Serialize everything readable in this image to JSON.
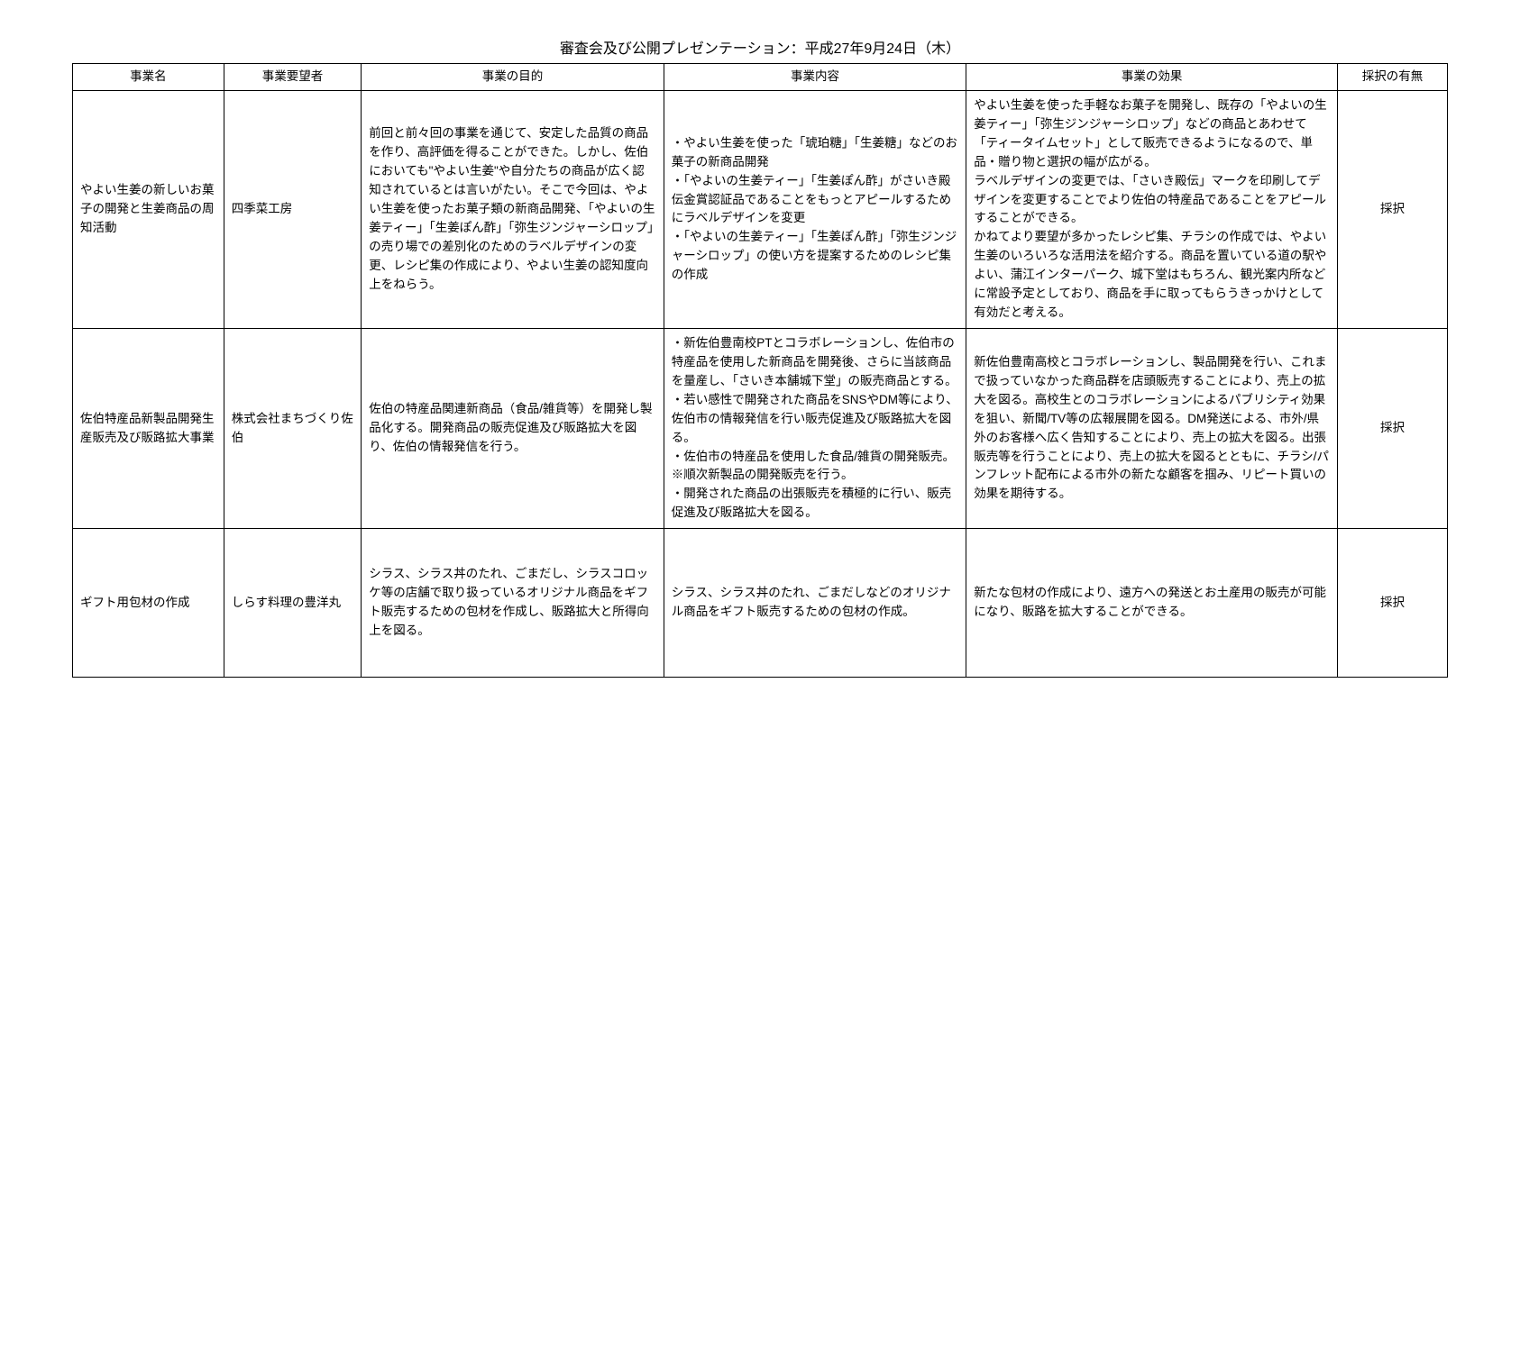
{
  "title": "審査会及び公開プレゼンテーション：平成27年9月24日（木）",
  "columns": [
    "事業名",
    "事業要望者",
    "事業の目的",
    "事業内容",
    "事業の効果",
    "採択の有無"
  ],
  "rows": [
    {
      "name": "やよい生姜の新しいお菓子の開発と生姜商品の周知活動",
      "applicant": "四季菜工房",
      "purpose": "前回と前々回の事業を通じて、安定した品質の商品を作り、高評価を得ることができた。しかし、佐伯においても\"やよい生姜\"や自分たちの商品が広く認知されているとは言いがたい。そこで今回は、やよい生姜を使ったお菓子類の新商品開発、「やよいの生姜ティー」「生姜ぽん酢」「弥生ジンジャーシロップ」の売り場での差別化のためのラベルデザインの変更、レシピ集の作成により、やよい生姜の認知度向上をねらう。",
      "content": "・やよい生姜を使った「琥珀糖」「生姜糖」などのお菓子の新商品開発\n・「やよいの生姜ティー」「生姜ぽん酢」がさいき殿伝金賞認証品であることをもっとアピールするためにラベルデザインを変更\n・「やよいの生姜ティー」「生姜ぽん酢」「弥生ジンジャーシロップ」の使い方を提案するためのレシピ集の作成",
      "effect": "やよい生姜を使った手軽なお菓子を開発し、既存の「やよいの生姜ティー」「弥生ジンジャーシロップ」などの商品とあわせて「ティータイムセット」として販売できるようになるので、単品・贈り物と選択の幅が広がる。\nラベルデザインの変更では、「さいき殿伝」マークを印刷してデザインを変更することでより佐伯の特産品であることをアピールすることができる。\nかねてより要望が多かったレシピ集、チラシの作成では、やよい生姜のいろいろな活用法を紹介する。商品を置いている道の駅やよい、蒲江インターパーク、城下堂はもちろん、観光案内所などに常設予定としており、商品を手に取ってもらうきっかけとして有効だと考える。",
      "adopted": "採択"
    },
    {
      "name": "佐伯特産品新製品開発生産販売及び販路拡大事業",
      "applicant": "株式会社まちづくり佐伯",
      "purpose": "佐伯の特産品関連新商品（食品/雑貨等）を開発し製品化する。開発商品の販売促進及び販路拡大を図り、佐伯の情報発信を行う。",
      "content": "・新佐伯豊南校PTとコラボレーションし、佐伯市の特産品を使用した新商品を開発後、さらに当該商品を量産し、「さいき本舗城下堂」の販売商品とする。\n・若い感性で開発された商品をSNSやDM等により、佐伯市の情報発信を行い販売促進及び販路拡大を図る。\n・佐伯市の特産品を使用した食品/雑貨の開発販売。※順次新製品の開発販売を行う。\n・開発された商品の出張販売を積極的に行い、販売促進及び販路拡大を図る。",
      "effect": "新佐伯豊南高校とコラボレーションし、製品開発を行い、これまで扱っていなかった商品群を店頭販売することにより、売上の拡大を図る。高校生とのコラボレーションによるパブリシティ効果を狙い、新聞/TV等の広報展開を図る。DM発送による、市外/県外のお客様へ広く告知することにより、売上の拡大を図る。出張販売等を行うことにより、売上の拡大を図るとともに、チラシ/パンフレット配布による市外の新たな顧客を掴み、リピート買いの効果を期待する。",
      "adopted": "採択"
    },
    {
      "name": "ギフト用包材の作成",
      "applicant": "しらす料理の豊洋丸",
      "purpose": "シラス、シラス丼のたれ、ごまだし、シラスコロッケ等の店舗で取り扱っているオリジナル商品をギフト販売するための包材を作成し、販路拡大と所得向上を図る。",
      "content": "シラス、シラス丼のたれ、ごまだしなどのオリジナル商品をギフト販売するための包材の作成。",
      "effect": "新たな包材の作成により、遠方への発送とお土産用の販売が可能になり、販路を拡大することができる。",
      "adopted": "採択"
    }
  ]
}
